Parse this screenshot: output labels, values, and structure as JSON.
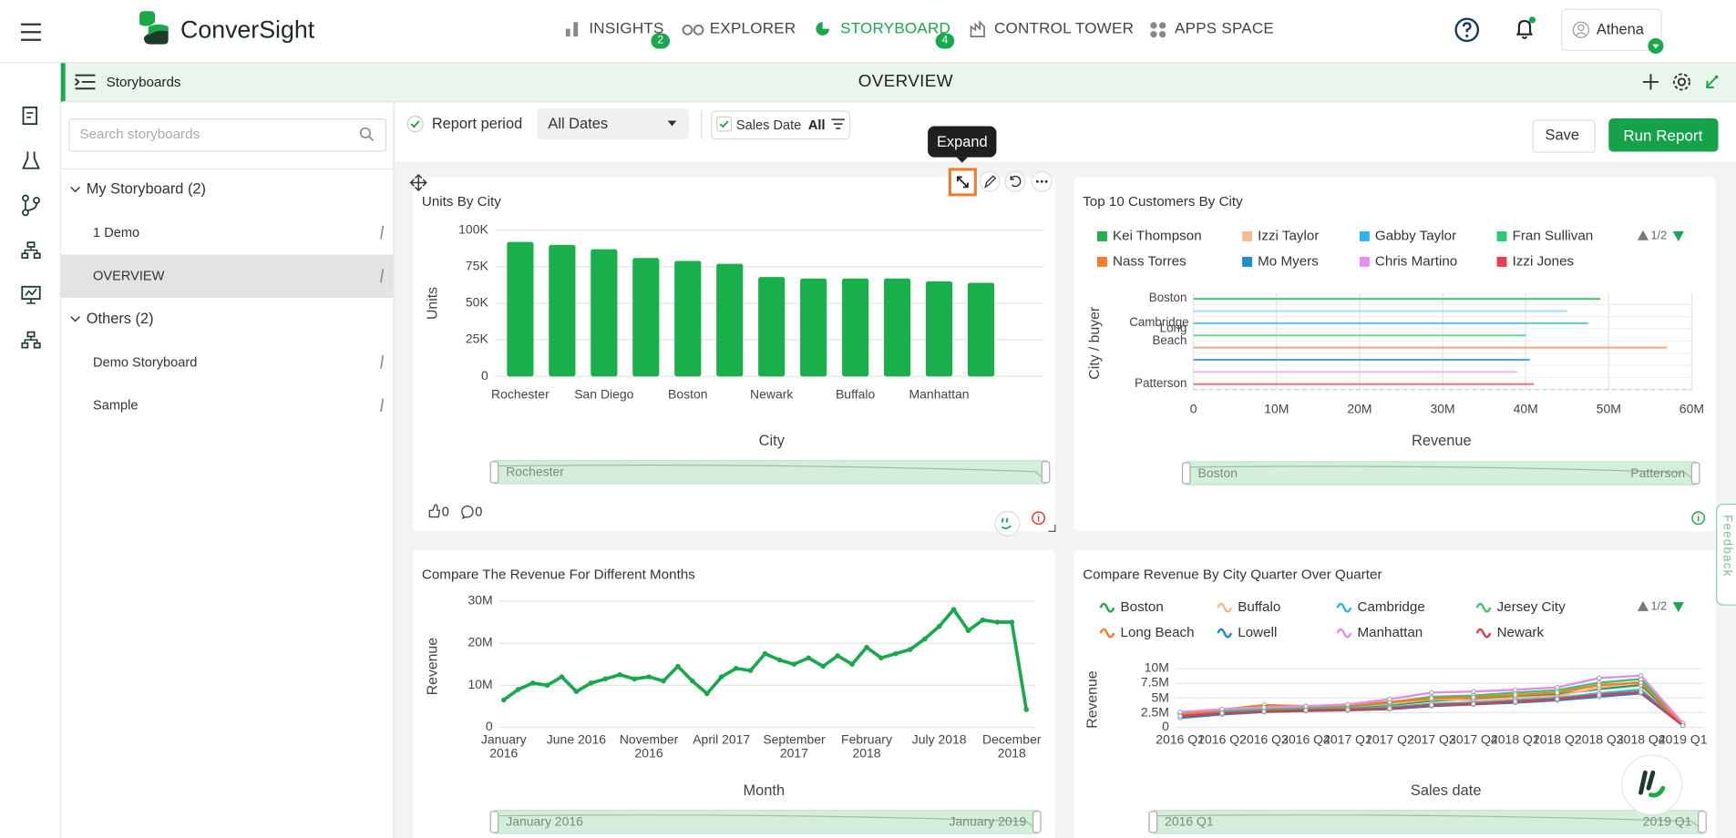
{
  "nav": {
    "logo": "ConverSight",
    "items": [
      {
        "label": "INSIGHTS",
        "badge": 2
      },
      {
        "label": "EXPLORER"
      },
      {
        "label": "STORYBOARD",
        "badge": 4,
        "active": true
      },
      {
        "label": "CONTROL TOWER"
      },
      {
        "label": "APPS SPACE"
      }
    ],
    "user": "Athena"
  },
  "subheader": {
    "section": "Storyboards",
    "title": "OVERVIEW"
  },
  "sidebar": {
    "search_placeholder": "Search storyboards",
    "groups": [
      {
        "label": "My Storyboard (2)",
        "items": [
          "1 Demo",
          "OVERVIEW"
        ]
      },
      {
        "label": "Others (2)",
        "items": [
          "Demo Storyboard",
          "Sample"
        ]
      }
    ]
  },
  "toolbar": {
    "report_period": "Report period",
    "period_value": "All Dates",
    "filter_label": "Sales Date",
    "filter_value": "All",
    "save": "Save",
    "run": "Run Report"
  },
  "tooltip": "Expand",
  "feedback": "Feedback",
  "chart_data": [
    {
      "type": "bar",
      "title": "Units By City",
      "categories": [
        "Rochester",
        null,
        "San Diego",
        null,
        "Boston",
        null,
        "Newark",
        null,
        "Buffalo",
        null,
        "Manhattan",
        null
      ],
      "values": [
        92000,
        90000,
        87000,
        81000,
        79000,
        77000,
        68000,
        67000,
        67000,
        67000,
        65000,
        64000
      ],
      "color": "#19b04b",
      "ylim": [
        0,
        100000
      ],
      "yticks": [
        0,
        {
          "value": 25000,
          "label": "25K"
        },
        {
          "value": 50000,
          "label": "50K"
        },
        {
          "value": 75000,
          "label": "75K"
        },
        {
          "value": 100000,
          "label": "100K"
        }
      ],
      "grid": true,
      "ylabel": "Units",
      "xlabel": "City",
      "slider_labels": [
        "Rochester"
      ],
      "likes": 0,
      "comments": 0
    },
    {
      "type": "bar",
      "orientation": "horizontal",
      "title": "Top 10 Customers By City",
      "legend": [
        {
          "name": "Kei Thompson",
          "color": "#22b14c"
        },
        {
          "name": "Izzi Taylor",
          "color": "#f7b98d"
        },
        {
          "name": "Gabby Taylor",
          "color": "#29b6f6"
        },
        {
          "name": "Fran Sullivan",
          "color": "#2ecc71"
        },
        {
          "name": "Nass Torres",
          "color": "#f57c2b"
        },
        {
          "name": "Mo Myers",
          "color": "#1f8fc9"
        },
        {
          "name": "Chris Martino",
          "color": "#e88ef0"
        },
        {
          "name": "Izzi Jones",
          "color": "#e8404a"
        }
      ],
      "legend_page": "1/2",
      "categories": [
        "Boston",
        null,
        "Cambridge",
        "Long Beach",
        null,
        null,
        null,
        "Patterson"
      ],
      "values": [
        49000000,
        45000000,
        47500000,
        40000000,
        57000000,
        40500000,
        39000000,
        41000000
      ],
      "colors": [
        "#43c16b",
        "#a6dcef",
        "#5bc0eb",
        "#6ad58e",
        "#f9a27a",
        "#4aa3df",
        "#e9b3f5",
        "#ef6b73"
      ],
      "xlim": [
        0,
        60000000
      ],
      "xticks": [
        0,
        {
          "value": 10000000,
          "label": "10M"
        },
        {
          "value": 20000000,
          "label": "20M"
        },
        {
          "value": 30000000,
          "label": "30M"
        },
        {
          "value": 40000000,
          "label": "40M"
        },
        {
          "value": 50000000,
          "label": "50M"
        },
        {
          "value": 60000000,
          "label": "60M"
        }
      ],
      "grid": true,
      "ylabel": "City / buyer",
      "xlabel": "Revenue",
      "slider_labels": [
        "Boston",
        "Patterson"
      ]
    },
    {
      "type": "line",
      "title": "Compare The Revenue For Different Months",
      "categories": [
        "January 2016",
        null,
        null,
        null,
        null,
        "June 2016",
        null,
        null,
        null,
        null,
        "November 2016",
        null,
        null,
        null,
        null,
        "April 2017",
        null,
        null,
        null,
        null,
        "September 2017",
        null,
        null,
        null,
        null,
        "February 2018",
        null,
        null,
        null,
        null,
        "July 2018",
        null,
        null,
        null,
        null,
        "December 2018",
        null
      ],
      "values": [
        6500000,
        9000000,
        10500000,
        10000000,
        12000000,
        8500000,
        10500000,
        11500000,
        12500000,
        11500000,
        12000000,
        11000000,
        14500000,
        11000000,
        8000000,
        12000000,
        14000000,
        13500000,
        17500000,
        16000000,
        15000000,
        16500000,
        14500000,
        17000000,
        15000000,
        19000000,
        16500000,
        17500000,
        18500000,
        21000000,
        24000000,
        28000000,
        23000000,
        25500000,
        25000000,
        25000000,
        4200000
      ],
      "color": "#19a84c",
      "ylim": [
        0,
        30000000
      ],
      "yticks": [
        0,
        {
          "value": 10000000,
          "label": "10M"
        },
        {
          "value": 20000000,
          "label": "20M"
        },
        {
          "value": 30000000,
          "label": "30M"
        }
      ],
      "grid": true,
      "ylabel": "Revenue",
      "xlabel": "Month",
      "slider_labels": [
        "January 2016",
        "January 2019"
      ]
    },
    {
      "type": "line",
      "title": "Compare Revenue By City Quarter Over Quarter",
      "categories": [
        "2016 Q1",
        "2016 Q2",
        "2016 Q3",
        "2016 Q4",
        "2017 Q1",
        "2017 Q2",
        "2017 Q3",
        "2017 Q4",
        "2018 Q1",
        "2018 Q2",
        "2018 Q3",
        "2018 Q4",
        "2019 Q1"
      ],
      "series": [
        {
          "name": "Boston",
          "color": "#2ca05a",
          "values": [
            2200000,
            2800000,
            3200000,
            3300000,
            3400000,
            3800000,
            4500000,
            4800000,
            5200000,
            5600000,
            6500000,
            7200000,
            500000
          ]
        },
        {
          "name": "Buffalo",
          "color": "#f8b68a",
          "values": [
            2000000,
            2500000,
            3600000,
            3400000,
            3500000,
            4000000,
            4800000,
            4600000,
            5000000,
            5300000,
            6800000,
            7800000,
            400000
          ]
        },
        {
          "name": "Cambridge",
          "color": "#29b6d9",
          "values": [
            1800000,
            2600000,
            2800000,
            3000000,
            3100000,
            3400000,
            4000000,
            4200000,
            4600000,
            5000000,
            5800000,
            6400000,
            400000
          ]
        },
        {
          "name": "Jersey City",
          "color": "#3ec46d",
          "values": [
            2400000,
            2900000,
            3100000,
            3200000,
            3500000,
            4200000,
            5200000,
            5400000,
            5900000,
            6300000,
            7600000,
            8200000,
            600000
          ]
        },
        {
          "name": "Long Beach",
          "color": "#f47c20",
          "values": [
            2100000,
            3000000,
            3800000,
            3600000,
            3700000,
            4300000,
            4900000,
            5100000,
            5500000,
            5900000,
            7200000,
            7600000,
            500000
          ]
        },
        {
          "name": "Lowell",
          "color": "#1a88c7",
          "values": [
            1600000,
            2200000,
            2600000,
            2800000,
            2900000,
            3100000,
            3600000,
            3900000,
            4200000,
            4600000,
            5200000,
            5800000,
            300000
          ]
        },
        {
          "name": "Manhattan",
          "color": "#e08ef0",
          "values": [
            2600000,
            3100000,
            3400000,
            3600000,
            3900000,
            4800000,
            5900000,
            6100000,
            6400000,
            6800000,
            8400000,
            8800000,
            700000
          ]
        },
        {
          "name": "Newark",
          "color": "#e53945",
          "values": [
            1900000,
            2400000,
            2700000,
            2900000,
            3000000,
            3200000,
            3800000,
            4000000,
            4400000,
            4800000,
            5500000,
            6000000,
            300000
          ]
        }
      ],
      "legend_page": "1/2",
      "ylim": [
        0,
        10000000
      ],
      "yticks": [
        0,
        {
          "value": 2500000,
          "label": "2.5M"
        },
        {
          "value": 5000000,
          "label": "5M"
        },
        {
          "value": 7500000,
          "label": "7.5M"
        },
        {
          "value": 10000000,
          "label": "10M"
        }
      ],
      "grid": true,
      "ylabel": "Revenue",
      "xlabel": "Sales date",
      "slider_labels": [
        "2016 Q1",
        "2019 Q1"
      ]
    }
  ]
}
